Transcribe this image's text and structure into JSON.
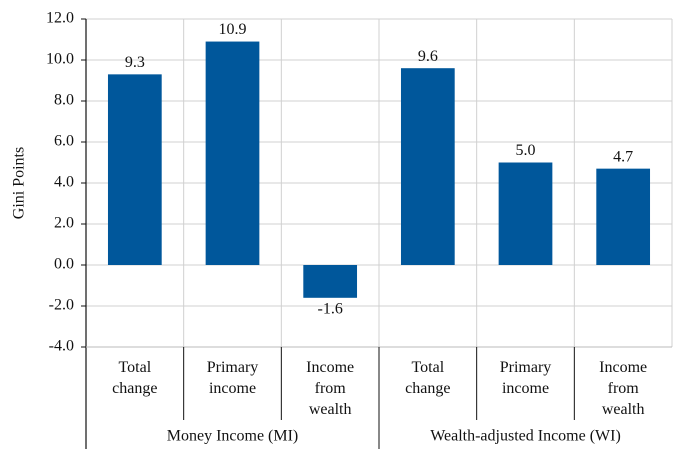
{
  "chart_data": {
    "type": "bar",
    "y_label": "Gini Points",
    "categories": [
      "Total change",
      "Primary income",
      "Income from wealth",
      "Total change",
      "Primary income",
      "Income from wealth"
    ],
    "values": [
      9.3,
      10.9,
      -1.6,
      9.6,
      5.0,
      4.7
    ],
    "value_labels": [
      "9.3",
      "10.9",
      "-1.6",
      "9.6",
      "5.0",
      "4.7"
    ],
    "groups": [
      {
        "label": "Money Income (MI)",
        "span": 3
      },
      {
        "label": "Wealth-adjusted Income (WI)",
        "span": 3
      }
    ],
    "color": "#00579b",
    "ylim": [
      -4,
      12
    ],
    "yticks": [
      {
        "value": -4,
        "label": "-4.0"
      },
      {
        "value": -2,
        "label": "-2.0"
      },
      {
        "value": 0,
        "label": "0.0"
      },
      {
        "value": 2,
        "label": "2.0"
      },
      {
        "value": 4,
        "label": "4.0"
      },
      {
        "value": 6,
        "label": "6.0"
      },
      {
        "value": 8,
        "label": "8.0"
      },
      {
        "value": 10,
        "label": "10.0"
      },
      {
        "value": 12,
        "label": "12.0"
      }
    ],
    "grid": true
  }
}
